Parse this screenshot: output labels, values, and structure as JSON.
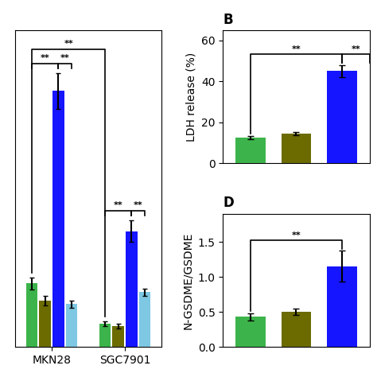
{
  "chart_data": [
    {
      "type": "bar",
      "categories": [
        "MKN28",
        "SGC7901"
      ],
      "series": [
        {
          "color": "#3cb44b",
          "values": [
            5.2,
            1.9
          ],
          "errors": [
            0.5,
            0.2
          ]
        },
        {
          "color": "#6b6b00",
          "values": [
            3.8,
            1.7
          ],
          "errors": [
            0.4,
            0.2
          ]
        },
        {
          "color": "#1515ff",
          "values": [
            21.0,
            9.5
          ],
          "errors": [
            1.5,
            0.9
          ]
        },
        {
          "color": "#7ec8e3",
          "values": [
            3.5,
            4.5
          ],
          "errors": [
            0.3,
            0.3
          ]
        }
      ],
      "ylim": [
        0,
        26
      ],
      "tick_labels": "x",
      "annotations": [
        "**",
        "**",
        "**",
        "**",
        "**"
      ]
    },
    {
      "type": "bar",
      "title": "B",
      "ylabel": "LDH release (%)",
      "categories": [
        null,
        null,
        null
      ],
      "values": [
        12.5,
        14.5,
        45.0
      ],
      "errors": [
        0.8,
        0.9,
        3.0
      ],
      "colors": [
        "#3cb44b",
        "#6b6b00",
        "#1515ff"
      ],
      "ylim": [
        0,
        65
      ],
      "yticks": [
        0,
        20,
        40,
        60
      ],
      "tick_labels": "y",
      "annotations": [
        "**",
        "**"
      ]
    },
    {
      "type": "bar",
      "title": "D",
      "ylabel": "N-GSDME/GSDME",
      "categories": [
        null,
        null,
        null
      ],
      "values": [
        0.43,
        0.5,
        1.15
      ],
      "errors": [
        0.05,
        0.05,
        0.22
      ],
      "colors": [
        "#3cb44b",
        "#6b6b00",
        "#1515ff"
      ],
      "ylim": [
        0,
        1.9
      ],
      "yticks": [
        0.0,
        0.5,
        1.0,
        1.5
      ],
      "tick_labels": "y",
      "annotations": [
        "**"
      ]
    }
  ]
}
